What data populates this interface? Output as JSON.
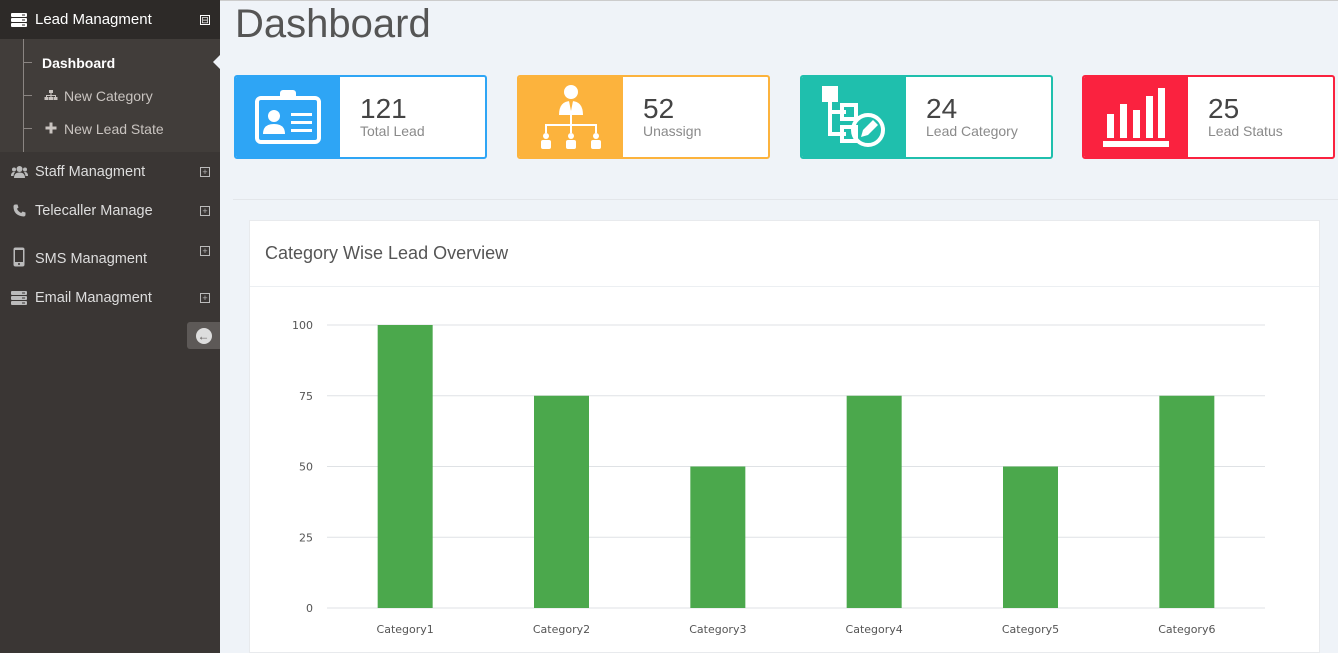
{
  "sidebar": {
    "lead": {
      "label": "Lead Managment",
      "toggle": "⊟",
      "items": [
        {
          "label": "Dashboard"
        },
        {
          "label": "New Category",
          "icon": "sitemap-icon"
        },
        {
          "label": "New Lead State",
          "icon": "plus-icon"
        }
      ]
    },
    "staff": {
      "label": "Staff Managment",
      "icon": "users-icon"
    },
    "telecaller": {
      "label": "Telecaller Manage",
      "icon": "phone-icon"
    },
    "sms": {
      "label": "SMS Managment",
      "icon": "mobile-icon"
    },
    "email": {
      "label": "Email Managment",
      "icon": "server-icon"
    },
    "collapse_icon": "arrow-circle-left-icon"
  },
  "page": {
    "title": "Dashboard"
  },
  "stats": [
    {
      "value": "121",
      "label": "Total Lead",
      "color": "#2ea5f5",
      "icon": "id-card-icon"
    },
    {
      "value": "52",
      "label": "Unassign",
      "color": "#fcb33d",
      "icon": "org-chart-icon"
    },
    {
      "value": "24",
      "label": "Lead Category",
      "color": "#1fbfad",
      "icon": "category-edit-icon"
    },
    {
      "value": "25",
      "label": "Lead Status",
      "color": "#fa223f",
      "icon": "bar-chart-icon"
    }
  ],
  "panel": {
    "title": "Category Wise Lead Overview"
  },
  "chart_data": {
    "type": "bar",
    "title": "Category Wise Lead Overview",
    "categories": [
      "Category1",
      "Category2",
      "Category3",
      "Category4",
      "Category5",
      "Category6"
    ],
    "values": [
      100,
      75,
      50,
      75,
      50,
      75
    ],
    "ylim": [
      0,
      100
    ],
    "yticks": [
      0,
      25,
      50,
      75,
      100
    ],
    "grid": true,
    "bar_color": "#4ba84c"
  }
}
